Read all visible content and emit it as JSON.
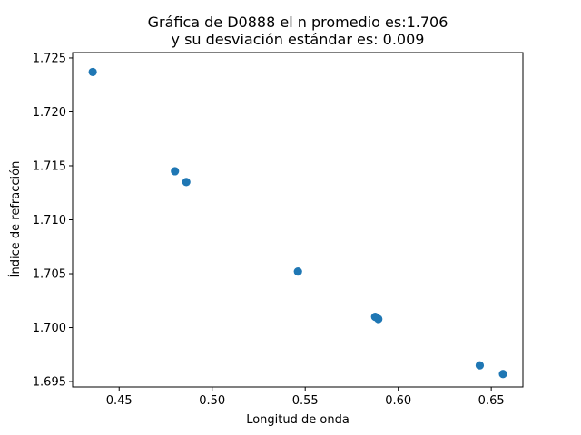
{
  "chart_data": {
    "type": "scatter",
    "title_line1": "Gráfica de D0888 el n promedio es:1.706",
    "title_line2": "y su desviación estándar es: 0.009",
    "xlabel": "Longitud de onda",
    "ylabel": "Índice de refracción",
    "xlim": [
      0.425,
      0.667
    ],
    "ylim": [
      1.6945,
      1.7255
    ],
    "x_ticks": [
      0.45,
      0.5,
      0.55,
      0.6,
      0.65
    ],
    "x_tick_labels": [
      "0.45",
      "0.50",
      "0.55",
      "0.60",
      "0.65"
    ],
    "y_ticks": [
      1.695,
      1.7,
      1.705,
      1.71,
      1.715,
      1.72,
      1.725
    ],
    "y_tick_labels": [
      "1.695",
      "1.700",
      "1.705",
      "1.710",
      "1.715",
      "1.720",
      "1.725"
    ],
    "grid": false,
    "color": "#1f77b4",
    "points": [
      {
        "x": 0.4358,
        "y": 1.7237
      },
      {
        "x": 0.48,
        "y": 1.7145
      },
      {
        "x": 0.4861,
        "y": 1.7135
      },
      {
        "x": 0.5461,
        "y": 1.7052
      },
      {
        "x": 0.5876,
        "y": 1.701
      },
      {
        "x": 0.5893,
        "y": 1.7008
      },
      {
        "x": 0.6438,
        "y": 1.6965
      },
      {
        "x": 0.6563,
        "y": 1.6957
      }
    ]
  }
}
